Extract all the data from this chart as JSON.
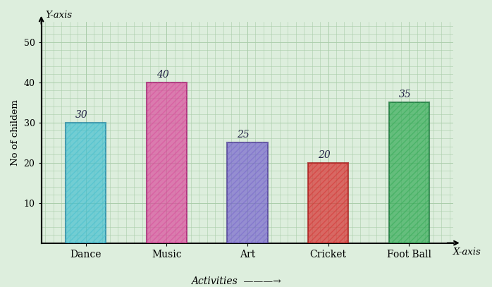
{
  "categories": [
    "Dance",
    "Music",
    "Art",
    "Cricket",
    "Foot Ball"
  ],
  "values": [
    30,
    40,
    25,
    20,
    35
  ],
  "bar_colors": [
    "#45bfcf",
    "#d94a9a",
    "#7766cc",
    "#d63030",
    "#33aa55"
  ],
  "bar_edge_colors": [
    "#1a7a99",
    "#991166",
    "#443388",
    "#991111",
    "#116633"
  ],
  "value_labels": [
    "30",
    "40",
    "25",
    "20",
    "35"
  ],
  "ylabel": "No of childem",
  "yaxis_label": "Y-axis",
  "xaxis_label": "X-axis",
  "xlabel_arrow": "Activities ———→",
  "ylim": [
    0,
    55
  ],
  "yticks": [
    10,
    20,
    30,
    40,
    50
  ],
  "background_color": "#ddeedd",
  "grid_color": "#aaccaa",
  "bar_width": 0.5
}
